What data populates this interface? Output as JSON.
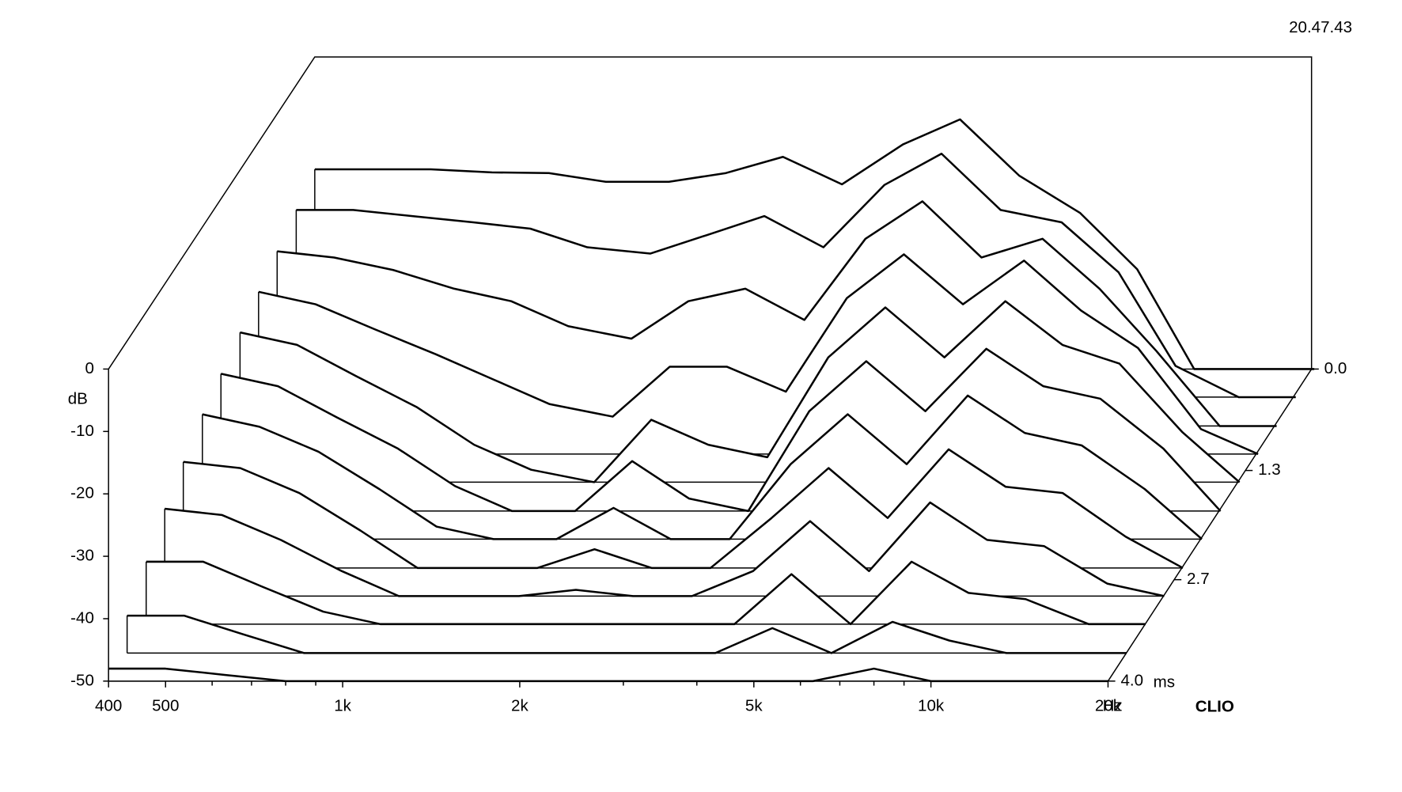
{
  "chart_data": {
    "type": "waterfall",
    "timestamp": "20.47.43",
    "y_label": "dB",
    "x_unit": "Hz",
    "z_unit": "ms",
    "brand": "CLIO",
    "xscale": "log",
    "xlim": [
      400,
      20000
    ],
    "ylim": [
      -50,
      0
    ],
    "zlim": [
      0,
      4
    ],
    "yticks": [
      0,
      -10,
      -20,
      -30,
      -40,
      -50
    ],
    "xticks": [
      400,
      500,
      {
        "value": 1000,
        "label": "1k"
      },
      {
        "value": 2000,
        "label": "2k"
      },
      {
        "value": 5000,
        "label": "5k"
      },
      {
        "value": 10000,
        "label": "10k"
      },
      {
        "value": 20000,
        "label": "20k"
      }
    ],
    "xminorticks": [
      600,
      700,
      800,
      900,
      3000,
      4000,
      6000,
      7000,
      8000,
      9000
    ],
    "zticks": [
      {
        "value": 0,
        "label": "0.0"
      },
      {
        "value": 1.3,
        "label": "1.3"
      },
      {
        "value": 2.7,
        "label": "2.7"
      },
      {
        "value": 4,
        "label": "4.0"
      }
    ],
    "x": [
      400,
      500,
      630,
      800,
      1000,
      1250,
      1600,
      2000,
      2500,
      3150,
      4000,
      5000,
      6300,
      8000,
      10000,
      12500,
      16000,
      20000
    ],
    "slices": [
      {
        "time": 0.0,
        "values": [
          -18,
          -18,
          -18,
          -18.5,
          -18.6,
          -20,
          -20,
          -18.6,
          -16,
          -20.4,
          -14,
          -10,
          -19,
          -25,
          -34,
          -50,
          -50,
          -50
        ]
      },
      {
        "time": 0.36,
        "values": [
          -20,
          -20,
          -21,
          -22,
          -23,
          -26,
          -27,
          -24,
          -21,
          -26,
          -16,
          -11,
          -20,
          -22,
          -30,
          -45,
          -50,
          -50
        ]
      },
      {
        "time": 0.73,
        "values": [
          -22,
          -23,
          -25,
          -28,
          -30,
          -34,
          -36,
          -30,
          -28,
          -33,
          -20,
          -14,
          -23,
          -20,
          -28,
          -38,
          -50,
          -50
        ]
      },
      {
        "time": 1.09,
        "values": [
          -24,
          -26,
          -30,
          -34,
          -38,
          -42,
          -44,
          -36,
          -36,
          -40,
          -25,
          -18,
          -26,
          -19,
          -27,
          -33,
          -46,
          -50
        ]
      },
      {
        "time": 1.45,
        "values": [
          -26,
          -28,
          -33,
          -38,
          -44,
          -48,
          -50,
          -40,
          -44,
          -46,
          -30,
          -22,
          -30,
          -21,
          -28,
          -31,
          -42,
          -50
        ]
      },
      {
        "time": 1.82,
        "values": [
          -28,
          -30,
          -35,
          -40,
          -46,
          -50,
          -50,
          -42,
          -48,
          -50,
          -34,
          -26,
          -34,
          -24,
          -30,
          -32,
          -40,
          -50
        ]
      },
      {
        "time": 2.18,
        "values": [
          -30,
          -32,
          -36,
          -42,
          -48,
          -50,
          -50,
          -45,
          -50,
          -50,
          -38,
          -30,
          -38,
          -27,
          -33,
          -35,
          -42,
          -50
        ]
      },
      {
        "time": 2.55,
        "values": [
          -33,
          -34,
          -38,
          -44,
          -50,
          -50,
          -50,
          -47,
          -50,
          -50,
          -42,
          -34,
          -42,
          -31,
          -37,
          -38,
          -45,
          -50
        ]
      },
      {
        "time": 2.91,
        "values": [
          -36,
          -37,
          -41,
          -46,
          -50,
          -50,
          -50,
          -49,
          -50,
          -50,
          -46,
          -38,
          -46,
          -35,
          -41,
          -42,
          -48,
          -50
        ]
      },
      {
        "time": 3.27,
        "values": [
          -40,
          -40,
          -44,
          -48,
          -50,
          -50,
          -50,
          -50,
          -50,
          -50,
          -50,
          -42,
          -50,
          -40,
          -45,
          -46,
          -50,
          -50
        ]
      },
      {
        "time": 3.64,
        "values": [
          -44,
          -44,
          -47,
          -50,
          -50,
          -50,
          -50,
          -50,
          -50,
          -50,
          -50,
          -46,
          -50,
          -45,
          -48,
          -50,
          -50,
          -50
        ]
      },
      {
        "time": 4.0,
        "values": [
          -48,
          -48,
          -49,
          -50,
          -50,
          -50,
          -50,
          -50,
          -50,
          -50,
          -50,
          -50,
          -50,
          -48,
          -50,
          -50,
          -50,
          -50
        ]
      }
    ]
  }
}
